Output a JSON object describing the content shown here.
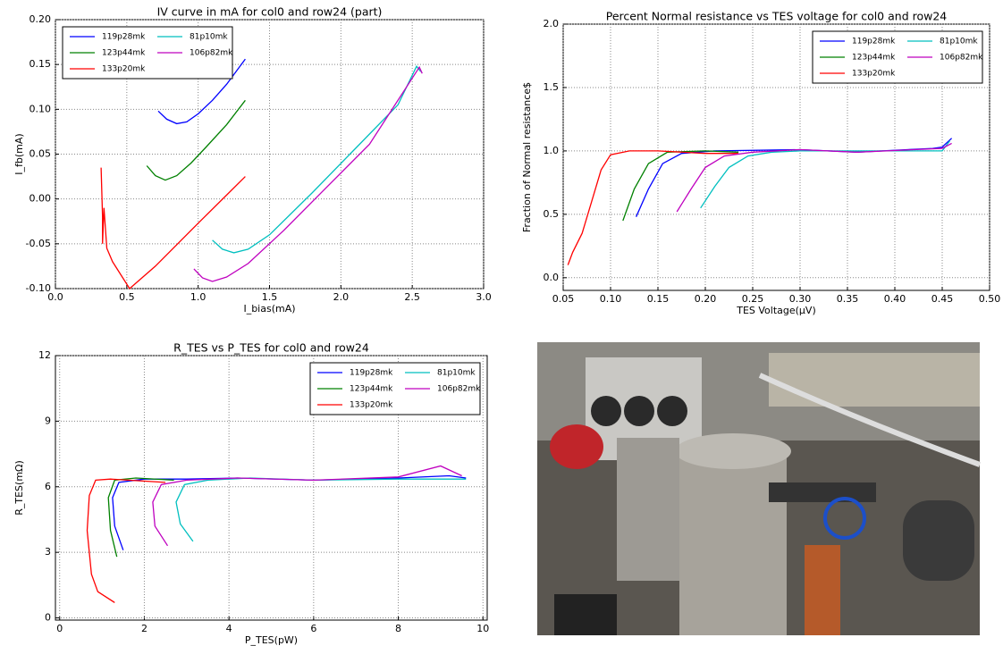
{
  "chart_data": [
    {
      "type": "line",
      "title": "IV curve in mA for col0 and row24 (part)",
      "x_label": "I_bias(mA)",
      "y_label": "I_fb(mA)",
      "xlim": [
        0,
        3
      ],
      "ylim": [
        -0.1,
        0.2
      ],
      "xticks": [
        {
          "value": 0,
          "label": "0.0"
        },
        0.5,
        {
          "value": 1,
          "label": "1.0"
        },
        1.5,
        {
          "value": 2,
          "label": "2.0"
        },
        2.5,
        {
          "value": 3,
          "label": "3.0"
        }
      ],
      "yticks": [
        {
          "value": -0.1,
          "label": "-0.10"
        },
        -0.05,
        {
          "value": 0,
          "label": "0.00"
        },
        0.05,
        {
          "value": 0.1,
          "label": "0.10"
        },
        0.15,
        {
          "value": 0.2,
          "label": "0.20"
        }
      ],
      "grid": true,
      "legend": "upper left",
      "series": [
        {
          "name": "119p28mk",
          "color": "#0000ff",
          "x": [
            0.72,
            0.78,
            0.85,
            0.92,
            1.0,
            1.1,
            1.2,
            1.33
          ],
          "values": [
            0.098,
            0.089,
            0.084,
            0.086,
            0.095,
            0.11,
            0.128,
            0.156
          ]
        },
        {
          "name": "123p44mk",
          "color": "#008000",
          "x": [
            0.64,
            0.7,
            0.77,
            0.85,
            0.95,
            1.05,
            1.2,
            1.33
          ],
          "values": [
            0.037,
            0.026,
            0.021,
            0.026,
            0.04,
            0.057,
            0.083,
            0.11
          ]
        },
        {
          "name": "133p20mk",
          "color": "#ff0000",
          "x": [
            0.32,
            0.33,
            0.33,
            0.34,
            0.36,
            0.4,
            0.46,
            0.52,
            0.7,
            1.0,
            1.33
          ],
          "values": [
            0.035,
            -0.02,
            -0.05,
            -0.01,
            -0.055,
            -0.07,
            -0.085,
            -0.1,
            -0.075,
            -0.027,
            0.025
          ]
        },
        {
          "name": "81p10mk",
          "color": "#00bfbf",
          "x": [
            1.1,
            1.17,
            1.25,
            1.35,
            1.5,
            1.8,
            2.1,
            2.4,
            2.53,
            2.56
          ],
          "values": [
            -0.046,
            -0.056,
            -0.06,
            -0.056,
            -0.04,
            0.007,
            0.056,
            0.105,
            0.148,
            0.142
          ]
        },
        {
          "name": "106p82mk",
          "color": "#bf00bf",
          "x": [
            0.97,
            1.03,
            1.1,
            1.2,
            1.35,
            1.6,
            1.9,
            2.2,
            2.55,
            2.57
          ],
          "values": [
            -0.078,
            -0.088,
            -0.092,
            -0.087,
            -0.072,
            -0.035,
            0.013,
            0.061,
            0.147,
            0.14
          ]
        }
      ]
    },
    {
      "type": "line",
      "title": "Percent Normal resistance vs TES voltage for col0 and row24",
      "x_label": "TES Voltage(μV)",
      "y_label": "Fraction of Normal resistance$",
      "xlim": [
        0.05,
        0.5
      ],
      "ylim": [
        -0.1,
        2.0
      ],
      "xticks": [
        0.05,
        {
          "value": 0.1,
          "label": "0.10"
        },
        0.15,
        {
          "value": 0.2,
          "label": "0.20"
        },
        0.25,
        {
          "value": 0.3,
          "label": "0.30"
        },
        0.35,
        {
          "value": 0.4,
          "label": "0.40"
        },
        0.45,
        {
          "value": 0.5,
          "label": "0.50"
        }
      ],
      "yticks": [
        {
          "value": 0,
          "label": "0.0"
        },
        0.5,
        {
          "value": 1,
          "label": "1.0"
        },
        1.5,
        {
          "value": 2,
          "label": "2.0"
        }
      ],
      "grid": true,
      "legend": "upper right",
      "series": [
        {
          "name": "119p28mk",
          "color": "#0000ff",
          "x": [
            0.127,
            0.14,
            0.155,
            0.175,
            0.21,
            0.3,
            0.36,
            0.44,
            0.45,
            0.46
          ],
          "values": [
            0.48,
            0.7,
            0.9,
            0.98,
            1.0,
            1.01,
            0.99,
            1.02,
            1.03,
            1.1
          ]
        },
        {
          "name": "123p44mk",
          "color": "#008000",
          "x": [
            0.113,
            0.125,
            0.14,
            0.16,
            0.2,
            0.235
          ],
          "values": [
            0.45,
            0.7,
            0.9,
            0.99,
            1.0,
            0.99
          ]
        },
        {
          "name": "133p20mk",
          "color": "#ff0000",
          "x": [
            0.055,
            0.06,
            0.07,
            0.08,
            0.09,
            0.1,
            0.12,
            0.15,
            0.2,
            0.235
          ],
          "values": [
            0.1,
            0.2,
            0.35,
            0.6,
            0.85,
            0.97,
            1.0,
            1.0,
            0.98,
            0.98
          ]
        },
        {
          "name": "81p10mk",
          "color": "#00bfbf",
          "x": [
            0.195,
            0.21,
            0.225,
            0.245,
            0.27,
            0.3,
            0.45,
            0.458
          ],
          "values": [
            0.55,
            0.72,
            0.87,
            0.96,
            0.99,
            1.0,
            1.0,
            1.08
          ]
        },
        {
          "name": "106p82mk",
          "color": "#bf00bf",
          "x": [
            0.17,
            0.185,
            0.2,
            0.22,
            0.25,
            0.3,
            0.36,
            0.45,
            0.46
          ],
          "values": [
            0.52,
            0.7,
            0.87,
            0.96,
            0.99,
            1.01,
            0.99,
            1.02,
            1.06
          ]
        }
      ]
    },
    {
      "type": "line",
      "title": "R_TES vs P_TES for col0 and row24",
      "x_label": "P_TES(pW)",
      "y_label": "R_TES(mΩ)",
      "xlim": [
        -0.1,
        10.1
      ],
      "ylim": [
        -0.1,
        12
      ],
      "xticks": [
        0,
        2,
        4,
        6,
        8,
        10
      ],
      "yticks": [
        0,
        3,
        6,
        9,
        12
      ],
      "grid": true,
      "legend": "upper right",
      "series": [
        {
          "name": "119p28mk",
          "color": "#0000ff",
          "x": [
            1.5,
            1.3,
            1.25,
            1.4,
            2.0,
            3,
            4.2,
            6,
            8,
            9.2,
            9.6
          ],
          "values": [
            3.1,
            4.2,
            5.5,
            6.2,
            6.35,
            6.35,
            6.4,
            6.3,
            6.4,
            6.5,
            6.4
          ]
        },
        {
          "name": "123p44mk",
          "color": "#008000",
          "x": [
            1.35,
            1.2,
            1.15,
            1.3,
            1.8,
            2.7
          ],
          "values": [
            2.8,
            4,
            5.5,
            6.3,
            6.4,
            6.3
          ]
        },
        {
          "name": "133p20mk",
          "color": "#ff0000",
          "x": [
            1.3,
            0.9,
            0.75,
            0.65,
            0.7,
            0.85,
            1.2,
            2.5
          ],
          "values": [
            0.7,
            1.2,
            2,
            4,
            5.6,
            6.3,
            6.35,
            6.2
          ]
        },
        {
          "name": "81p10mk",
          "color": "#00bfbf",
          "x": [
            3.15,
            2.85,
            2.75,
            2.95,
            3.5,
            4.5,
            6,
            8,
            9.6
          ],
          "values": [
            3.5,
            4.3,
            5.3,
            6.1,
            6.3,
            6.4,
            6.3,
            6.35,
            6.35
          ]
        },
        {
          "name": "106p82mk",
          "color": "#bf00bf",
          "x": [
            2.55,
            2.25,
            2.2,
            2.4,
            3,
            4.2,
            6,
            8,
            9.0,
            9.5
          ],
          "values": [
            3.3,
            4.2,
            5.3,
            6.1,
            6.3,
            6.4,
            6.3,
            6.45,
            6.95,
            6.5
          ]
        }
      ]
    }
  ]
}
